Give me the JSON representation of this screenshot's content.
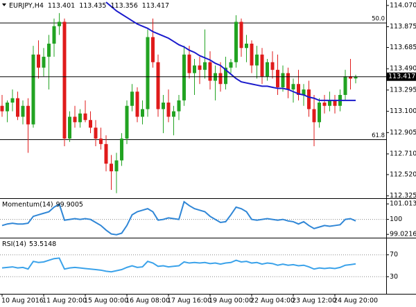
{
  "chart_data": [
    {
      "type": "candlestick",
      "symbol": "EURJPY,H4",
      "open": [
        113.15,
        113.1,
        113.18,
        113.22,
        113.05,
        113.15,
        112.98,
        113.62,
        113.5,
        113.6,
        113.72,
        113.88,
        113.92,
        112.85,
        113.05,
        113.0,
        113.08,
        113.02,
        112.95,
        112.85,
        112.8,
        112.62,
        112.55,
        112.65,
        112.85,
        113.15,
        113.28,
        113.05,
        113.12,
        113.78,
        113.55,
        113.12,
        113.18,
        113.05,
        113.1,
        113.2,
        113.62,
        113.45,
        113.52,
        113.48,
        113.55,
        113.38,
        113.45,
        113.35,
        113.5,
        113.55,
        113.92,
        113.68,
        113.72,
        113.52,
        113.62,
        113.42,
        113.55,
        113.48,
        113.32,
        113.45,
        113.3,
        113.35,
        113.25,
        113.3,
        113.12,
        113.0,
        113.18,
        113.15,
        113.2,
        113.15,
        113.25,
        113.42,
        113.401
      ],
      "high": [
        113.25,
        113.2,
        113.3,
        113.28,
        113.2,
        113.22,
        113.7,
        113.75,
        113.68,
        113.8,
        113.95,
        114.0,
        113.95,
        113.1,
        113.15,
        113.12,
        113.2,
        113.1,
        113.02,
        112.95,
        112.88,
        112.7,
        112.72,
        112.9,
        113.2,
        113.35,
        113.32,
        113.2,
        113.85,
        113.95,
        113.62,
        113.25,
        113.3,
        113.15,
        113.25,
        113.7,
        113.7,
        113.58,
        113.6,
        113.85,
        113.65,
        113.52,
        113.55,
        113.6,
        113.58,
        113.98,
        113.95,
        113.8,
        113.75,
        113.7,
        113.68,
        113.58,
        113.65,
        113.62,
        113.52,
        113.5,
        113.4,
        113.48,
        113.35,
        113.38,
        113.25,
        113.22,
        113.25,
        113.28,
        113.25,
        113.3,
        113.48,
        113.58,
        113.435
      ],
      "low": [
        113.05,
        113.0,
        113.1,
        113.02,
        112.98,
        112.72,
        112.95,
        113.4,
        113.42,
        113.3,
        113.6,
        113.8,
        112.78,
        112.82,
        112.95,
        112.95,
        113.0,
        112.9,
        112.78,
        112.75,
        112.55,
        112.38,
        112.35,
        112.6,
        112.8,
        113.1,
        113.0,
        112.98,
        113.05,
        113.5,
        113.05,
        112.9,
        113.0,
        112.88,
        113.02,
        113.15,
        113.4,
        113.25,
        113.35,
        113.4,
        113.3,
        113.2,
        113.28,
        113.3,
        113.45,
        113.5,
        113.6,
        113.55,
        113.45,
        113.4,
        113.35,
        113.38,
        113.4,
        113.25,
        113.28,
        113.22,
        113.18,
        113.2,
        113.15,
        113.05,
        112.78,
        112.95,
        113.08,
        113.1,
        113.08,
        113.1,
        113.2,
        113.3,
        113.356
      ],
      "close": [
        113.1,
        113.18,
        113.22,
        113.05,
        113.15,
        112.98,
        113.62,
        113.5,
        113.6,
        113.72,
        113.88,
        113.92,
        112.85,
        113.05,
        113.0,
        113.08,
        113.02,
        112.95,
        112.85,
        112.8,
        112.62,
        112.55,
        112.65,
        112.85,
        113.15,
        113.28,
        113.05,
        113.12,
        113.78,
        113.55,
        113.12,
        113.18,
        113.05,
        113.1,
        113.2,
        113.62,
        113.45,
        113.52,
        113.48,
        113.55,
        113.38,
        113.45,
        113.35,
        113.5,
        113.55,
        113.92,
        113.68,
        113.72,
        113.52,
        113.62,
        113.42,
        113.55,
        113.48,
        113.32,
        113.45,
        113.3,
        113.35,
        113.25,
        113.3,
        113.12,
        113.0,
        113.18,
        113.15,
        113.2,
        113.15,
        113.25,
        113.42,
        113.4,
        113.417
      ],
      "ma": {
        "color": "#1a1acc",
        "values": [
          null,
          null,
          null,
          null,
          null,
          null,
          null,
          null,
          null,
          null,
          null,
          null,
          null,
          null,
          null,
          null,
          null,
          null,
          null,
          null,
          114.1,
          114.06,
          114.02,
          113.99,
          113.96,
          113.93,
          113.9,
          113.88,
          113.86,
          113.83,
          113.81,
          113.79,
          113.77,
          113.74,
          113.71,
          113.69,
          113.66,
          113.64,
          113.61,
          113.59,
          113.57,
          113.54,
          113.52,
          113.48,
          113.44,
          113.4,
          113.37,
          113.36,
          113.35,
          113.34,
          113.33,
          113.33,
          113.32,
          113.31,
          113.31,
          113.3,
          113.28,
          113.26,
          113.25,
          113.23,
          113.22,
          113.2,
          113.2,
          113.2,
          113.2,
          113.2,
          113.2,
          113.2,
          113.2
        ]
      },
      "up_color": "#22a322",
      "down_color": "#e01b1b",
      "ylim": [
        112.31,
        114.12
      ],
      "yticks": [
        {
          "value": 114.07,
          "label": "114.070"
        },
        113.875,
        113.685,
        {
          "value": 113.49,
          "label": "113.490"
        },
        113.295,
        {
          "value": 113.1,
          "label": "113.100"
        },
        112.905,
        {
          "value": 112.71,
          "label": "112.710"
        },
        {
          "value": 112.52,
          "label": "112.520"
        },
        112.325
      ],
      "levels": [
        {
          "label": "50.0",
          "value": 113.91
        },
        {
          "label": "61.8",
          "value": 112.84
        }
      ],
      "xticks": [
        {
          "value": 0,
          "label": "10 Aug 2016"
        },
        {
          "value": 8,
          "label": "11 Aug 20:00"
        },
        {
          "value": 16,
          "label": "15 Aug 00:00"
        },
        {
          "value": 24,
          "label": "16 Aug 08:00"
        },
        {
          "value": 32,
          "label": "17 Aug 16:00"
        },
        {
          "value": 40,
          "label": "19 Aug 00:00"
        },
        {
          "value": 48,
          "label": "22 Aug 04:00"
        },
        {
          "value": 56,
          "label": "23 Aug 12:00"
        },
        {
          "value": 64,
          "label": "24 Aug 20:00"
        }
      ]
    },
    {
      "type": "line",
      "title": "Momentum(14)",
      "color": "#2f86d6",
      "values": [
        99.6,
        99.7,
        99.75,
        99.7,
        99.7,
        99.75,
        100.2,
        100.3,
        100.4,
        100.5,
        100.8,
        101.0,
        99.95,
        100.0,
        100.05,
        100.0,
        100.05,
        100.0,
        99.8,
        99.6,
        99.3,
        99.05,
        99.0,
        99.1,
        99.6,
        100.3,
        100.5,
        100.6,
        100.7,
        100.5,
        99.95,
        100.0,
        100.1,
        100.05,
        100.0,
        101.15,
        100.9,
        100.7,
        100.6,
        100.5,
        100.2,
        100.0,
        99.8,
        99.85,
        100.3,
        100.8,
        100.7,
        100.5,
        100.0,
        99.95,
        100.0,
        100.05,
        100.0,
        99.95,
        100.0,
        99.9,
        99.85,
        99.7,
        99.85,
        99.6,
        99.4,
        99.5,
        99.6,
        99.55,
        99.6,
        99.65,
        100.0,
        100.05,
        99.9005
      ],
      "ylim": [
        98.85,
        101.34
      ],
      "yticks": [
        101.0135,
        100,
        99.0216
      ],
      "levels": [
        100
      ]
    },
    {
      "type": "line",
      "title": "RSI(14)",
      "color": "#3aa2ea",
      "values": [
        46,
        47,
        48,
        46,
        47,
        44,
        58,
        56,
        57,
        60,
        63,
        64,
        44,
        46,
        47,
        46,
        45,
        44,
        43,
        42,
        40,
        39,
        41,
        43,
        47,
        50,
        47,
        48,
        58,
        55,
        49,
        50,
        48,
        49,
        50,
        57,
        55,
        56,
        55,
        56,
        54,
        55,
        53,
        55,
        56,
        60,
        57,
        58,
        55,
        56,
        53,
        55,
        54,
        51,
        53,
        51,
        52,
        50,
        51,
        48,
        44,
        46,
        45,
        46,
        45,
        47,
        51,
        52,
        53.5148
      ],
      "ylim": [
        0,
        100
      ],
      "yticks": [
        70,
        30
      ],
      "levels": [
        70,
        30
      ]
    }
  ]
}
